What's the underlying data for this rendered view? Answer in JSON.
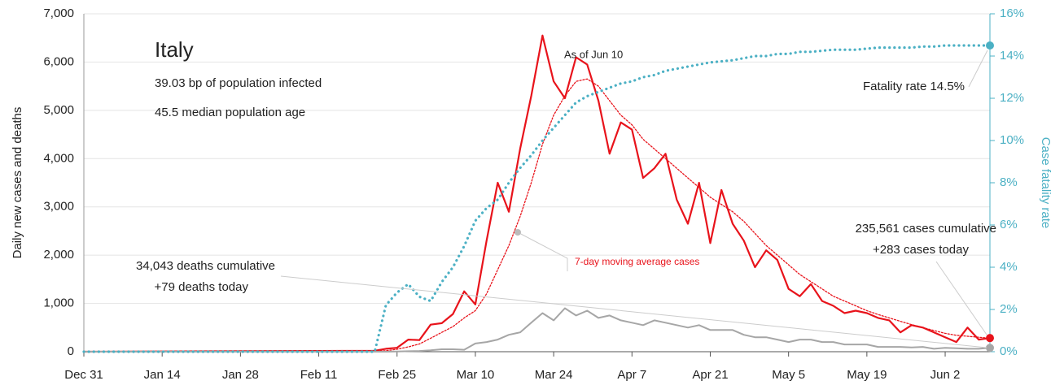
{
  "chart_data": {
    "type": "line",
    "y_label": "Daily new cases and deaths",
    "y2_label": "Case fatality rate",
    "annotations": {
      "country": "Italy",
      "infected": "39.03 bp of population infected",
      "age": "45.5 median population age",
      "as_of": "As of Jun 10",
      "fatality": "Fatality rate 14.5%",
      "cases_cum": "235,561 cases cumulative",
      "cases_today": "+283 cases today",
      "deaths_cum": "34,043 deaths cumulative",
      "deaths_today": "+79 deaths today",
      "avg_note": "7-day moving average cases"
    },
    "x": [
      "Dec 31",
      "Feb 21",
      "Feb 23",
      "Feb 25",
      "Feb 27",
      "Feb 29",
      "Mar 2",
      "Mar 4",
      "Mar 6",
      "Mar 8",
      "Mar 10",
      "Mar 12",
      "Mar 14",
      "Mar 16",
      "Mar 18",
      "Mar 20",
      "Mar 22",
      "Mar 24",
      "Mar 26",
      "Mar 28",
      "Mar 30",
      "Apr 1",
      "Apr 3",
      "Apr 5",
      "Apr 7",
      "Apr 9",
      "Apr 11",
      "Apr 13",
      "Apr 15",
      "Apr 17",
      "Apr 19",
      "Apr 21",
      "Apr 23",
      "Apr 25",
      "Apr 27",
      "Apr 29",
      "May 1",
      "May 3",
      "May 5",
      "May 7",
      "May 9",
      "May 11",
      "May 13",
      "May 15",
      "May 17",
      "May 19",
      "May 21",
      "May 23",
      "May 25",
      "May 27",
      "May 29",
      "May 31",
      "Jun 2",
      "Jun 4",
      "Jun 6",
      "Jun 8",
      "Jun 10"
    ],
    "series": [
      {
        "name": "Daily new cases",
        "color": "#e8131b",
        "style": "solid",
        "width": 2.2,
        "values": [
          0,
          20,
          60,
          80,
          250,
          240,
          560,
          590,
          780,
          1250,
          980,
          2300,
          3500,
          2900,
          4200,
          5300,
          6550,
          5600,
          5250,
          6100,
          5950,
          5200,
          4100,
          4750,
          4600,
          3600,
          3800,
          4100,
          3150,
          2650,
          3500,
          2250,
          3350,
          2650,
          2300,
          1750,
          2100,
          1900,
          1300,
          1150,
          1400,
          1050,
          950,
          800,
          850,
          800,
          700,
          650,
          400,
          550,
          500,
          400,
          300,
          200,
          500,
          250,
          283
        ]
      },
      {
        "name": "7-day moving average cases",
        "color": "#e8131b",
        "style": "dotted",
        "width": 1.3,
        "values": [
          0,
          10,
          20,
          50,
          100,
          160,
          280,
          400,
          520,
          700,
          850,
          1200,
          1700,
          2200,
          2800,
          3500,
          4300,
          4900,
          5300,
          5600,
          5650,
          5500,
          5200,
          4900,
          4700,
          4400,
          4200,
          4000,
          3800,
          3600,
          3400,
          3200,
          3050,
          2900,
          2700,
          2450,
          2200,
          2000,
          1800,
          1600,
          1450,
          1300,
          1150,
          1050,
          950,
          850,
          770,
          700,
          630,
          560,
          500,
          440,
          380,
          340,
          320,
          300,
          280
        ]
      },
      {
        "name": "Daily new deaths",
        "color": "#a6a6a6",
        "style": "solid",
        "width": 2,
        "values": [
          0,
          0,
          0,
          5,
          10,
          15,
          30,
          50,
          50,
          40,
          170,
          200,
          250,
          350,
          400,
          600,
          800,
          650,
          900,
          750,
          850,
          700,
          750,
          650,
          600,
          550,
          650,
          600,
          550,
          500,
          550,
          450,
          450,
          450,
          350,
          300,
          300,
          250,
          200,
          250,
          250,
          200,
          200,
          150,
          150,
          150,
          100,
          100,
          100,
          90,
          100,
          60,
          80,
          70,
          60,
          60,
          79
        ]
      },
      {
        "name": "Case fatality rate",
        "color": "#4bb0c4",
        "style": "dotted",
        "width": 3.2,
        "axis": "y2",
        "values": [
          0,
          0,
          2.2,
          2.8,
          3.2,
          2.6,
          2.4,
          3.3,
          4.0,
          5.0,
          6.2,
          6.8,
          7.2,
          8.0,
          8.7,
          9.3,
          10.0,
          10.6,
          11.2,
          11.8,
          12.1,
          12.3,
          12.5,
          12.7,
          12.8,
          13.0,
          13.1,
          13.3,
          13.4,
          13.5,
          13.6,
          13.7,
          13.75,
          13.8,
          13.9,
          14.0,
          14.0,
          14.1,
          14.1,
          14.2,
          14.2,
          14.25,
          14.3,
          14.3,
          14.3,
          14.35,
          14.4,
          14.4,
          14.4,
          14.4,
          14.45,
          14.45,
          14.5,
          14.5,
          14.5,
          14.5,
          14.5
        ]
      }
    ],
    "xticks": [
      "Dec 31",
      "Jan 14",
      "Jan 28",
      "Feb 11",
      "Feb 25",
      "Mar 10",
      "Mar 24",
      "Apr 7",
      "Apr 21",
      "May 5",
      "May 19",
      "Jun 2"
    ],
    "ylim": [
      0,
      7000
    ],
    "yticks": [
      0,
      {
        "value": 1000,
        "label": "1,000"
      },
      {
        "value": 2000,
        "label": "2,000"
      },
      {
        "value": 3000,
        "label": "3,000"
      },
      {
        "value": 4000,
        "label": "4,000"
      },
      {
        "value": 5000,
        "label": "5,000"
      },
      {
        "value": 6000,
        "label": "6,000"
      },
      {
        "value": 7000,
        "label": "7,000"
      }
    ],
    "y2lim": [
      0,
      16
    ],
    "y2ticks": [
      {
        "value": 0,
        "label": "0%"
      },
      {
        "value": 2,
        "label": "2%"
      },
      {
        "value": 4,
        "label": "4%"
      },
      {
        "value": 6,
        "label": "6%"
      },
      {
        "value": 8,
        "label": "8%"
      },
      {
        "value": 10,
        "label": "10%"
      },
      {
        "value": 12,
        "label": "12%"
      },
      {
        "value": 14,
        "label": "14%"
      },
      {
        "value": 16,
        "label": "16%"
      }
    ],
    "grid": true
  }
}
